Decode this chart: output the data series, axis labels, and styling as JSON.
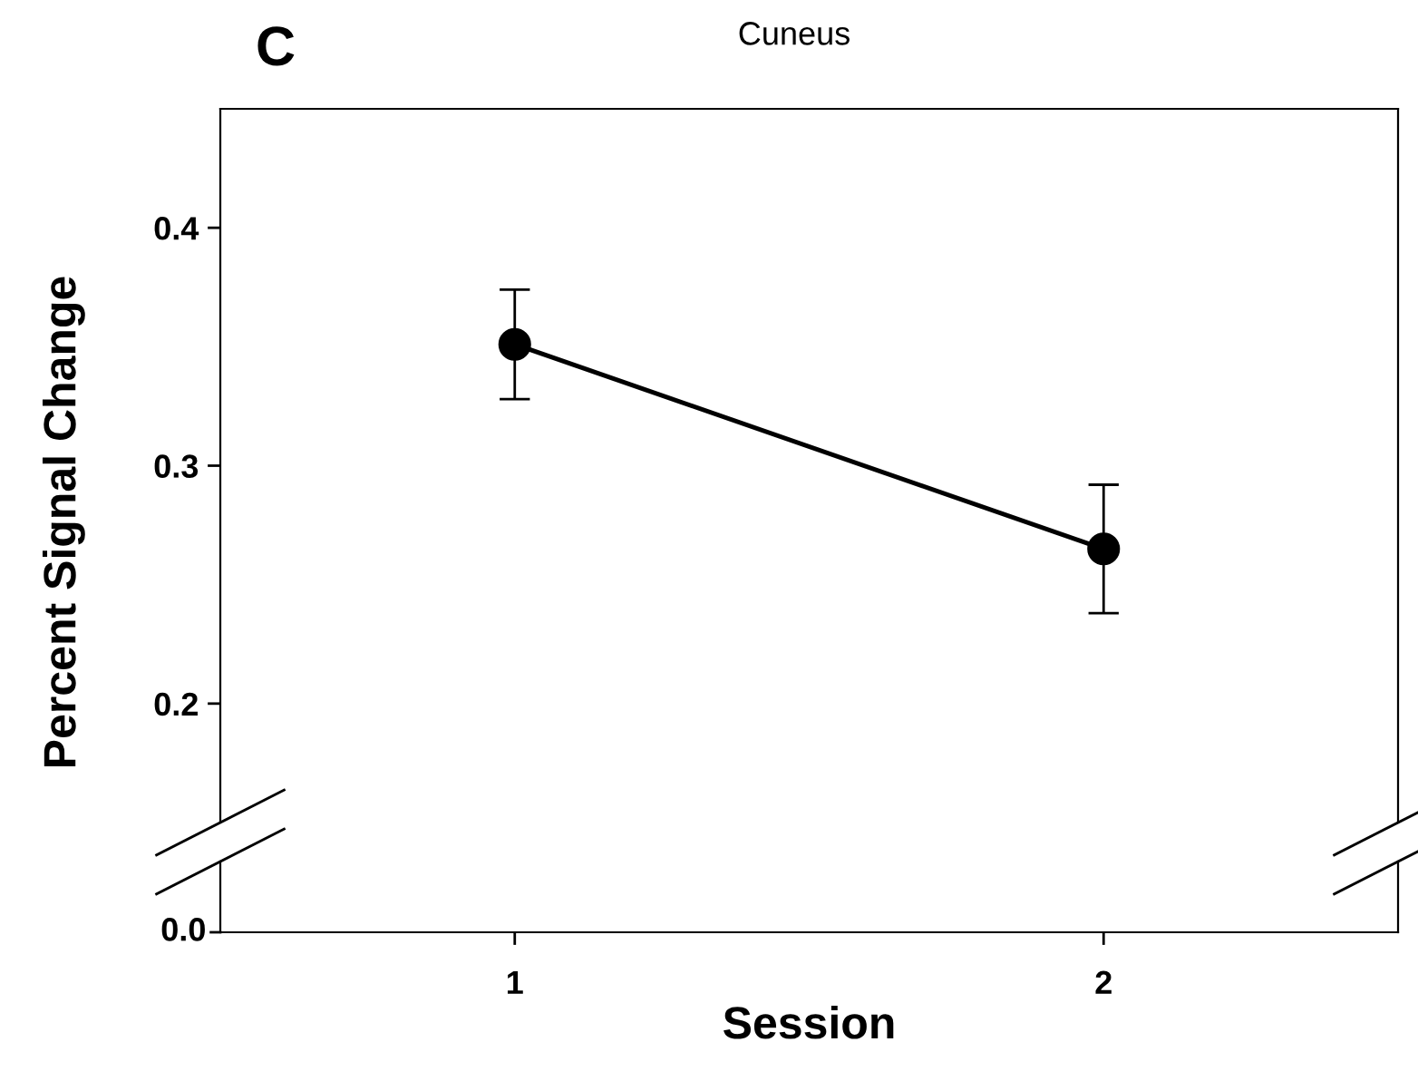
{
  "chart_data": {
    "type": "line",
    "title": "Cuneus",
    "xlabel": "Session",
    "ylabel": "Percent Signal Change",
    "annotations": [
      "C",
      "0.0"
    ],
    "categories": [
      "1",
      "2"
    ],
    "ylim": [
      0.15,
      0.45
    ],
    "yticks": [
      0.2,
      0.3,
      0.4
    ],
    "series": [
      {
        "color": "#000000",
        "values": [
          0.351,
          0.265
        ],
        "errors": [
          [
            0.328,
            0.374
          ],
          [
            0.238,
            0.292
          ]
        ]
      }
    ],
    "marker": "circle",
    "line_style": "solid"
  }
}
